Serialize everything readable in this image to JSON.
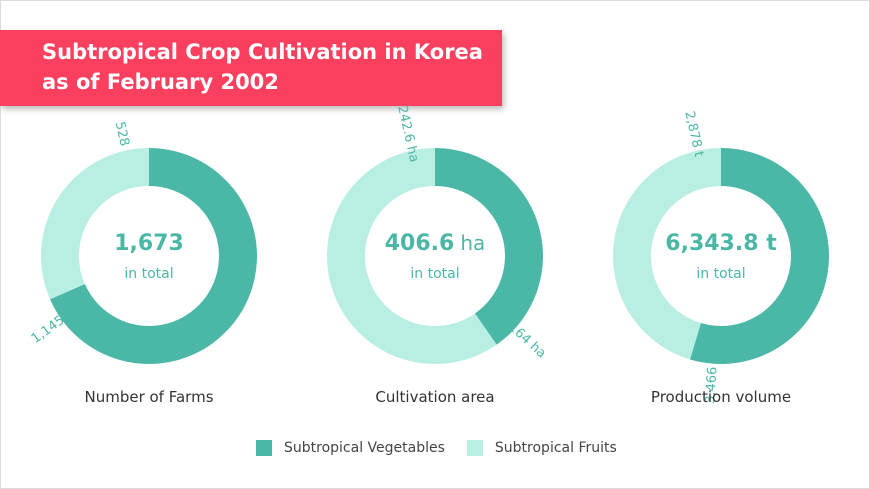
{
  "title": {
    "line1": "Subtropical Crop Cultivation in Korea",
    "line2": "as of February 2002"
  },
  "colors": {
    "banner": "#fb3f5e",
    "vegetables": "#4bb8a7",
    "fruits": "#b9efe3",
    "text_accent": "#4bb8a7"
  },
  "legend": [
    {
      "label": "Subtropical Vegetables",
      "color": "#4bb8a7"
    },
    {
      "label": "Subtropical Fruits",
      "color": "#b9efe3"
    }
  ],
  "chart_data": [
    {
      "type": "pie",
      "title": "Number of Farms",
      "center_value": "1,673",
      "center_unit": "",
      "center_caption": "in total",
      "series": [
        {
          "name": "Subtropical Vegetables",
          "value": 1145,
          "label": "1,145"
        },
        {
          "name": "Subtropical Fruits",
          "value": 528,
          "label": "528"
        }
      ]
    },
    {
      "type": "pie",
      "title": "Cultivation area",
      "center_value": "406.6",
      "center_unit": "ha",
      "center_caption": "in total",
      "series": [
        {
          "name": "Subtropical Vegetables",
          "value": 164,
          "label": "164 ha"
        },
        {
          "name": "Subtropical Fruits",
          "value": 242.6,
          "label": "242.6 ha"
        }
      ]
    },
    {
      "type": "pie",
      "title": "Production volume",
      "center_value": "6,343.8 t",
      "center_unit": "",
      "center_caption": "in total",
      "series": [
        {
          "name": "Subtropical Vegetables",
          "value": 3466,
          "label": "3,466 t"
        },
        {
          "name": "Subtropical Fruits",
          "value": 2878,
          "label": "2,878 t"
        }
      ]
    }
  ]
}
